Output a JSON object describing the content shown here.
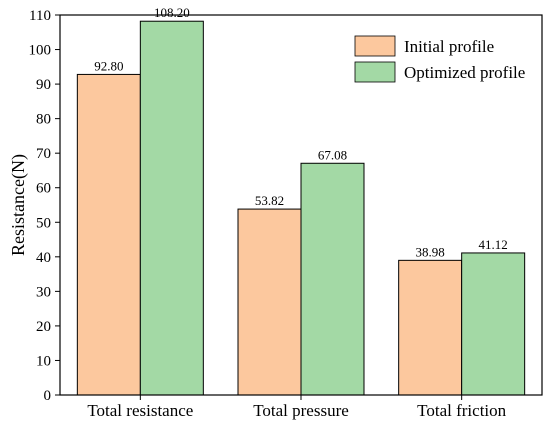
{
  "chart_data": {
    "type": "bar",
    "title": "",
    "xlabel": "",
    "ylabel": "Resistance(N)",
    "ylim": [
      0,
      110
    ],
    "y_ticks": [
      0,
      10,
      20,
      30,
      40,
      50,
      60,
      70,
      80,
      90,
      100,
      110
    ],
    "categories": [
      "Total resistance",
      "Total pressure",
      "Total friction"
    ],
    "series": [
      {
        "name": "Initial profile",
        "values": [
          92.8,
          53.82,
          38.98
        ],
        "labels": [
          "92.80",
          "53.82",
          "38.98"
        ],
        "color": "#FCC89E"
      },
      {
        "name": "Optimized profile",
        "values": [
          108.2,
          67.08,
          41.12
        ],
        "labels": [
          "108.20",
          "67.08",
          "41.12"
        ],
        "color": "#A3D9A5"
      }
    ],
    "legend_position": "top-right",
    "grid": false
  }
}
